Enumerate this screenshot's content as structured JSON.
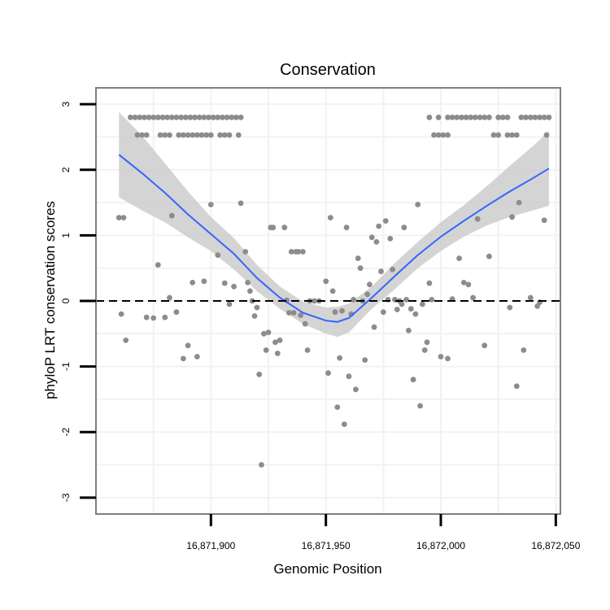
{
  "chart_data": {
    "type": "scatter",
    "title": "Conservation",
    "xlabel": "Genomic Position",
    "ylabel": "phyloP LRT conservation scores",
    "xlim": [
      16871850,
      16872052
    ],
    "ylim": [
      -3.25,
      3.25
    ],
    "x_ticks": [
      16871900,
      16871950,
      16872000,
      16872050
    ],
    "x_tick_labels": [
      "16,871,900",
      "16,871,950",
      "16,872,000",
      "16,872,050"
    ],
    "y_ticks": [
      -3,
      -2,
      -1,
      0,
      1,
      2,
      3
    ],
    "y_tick_labels": [
      "-3",
      "-2",
      "-1",
      "0",
      "1",
      "2",
      "3"
    ],
    "grid": true,
    "reference_line": {
      "y": 0,
      "style": "dashed",
      "color": "#000000"
    },
    "colors": {
      "points": "#8c8c8c",
      "smooth": "#3366ff",
      "ribbon": "#cccccc",
      "panel_border": "#7f7f7f",
      "grid": "#f2f2f2"
    },
    "points": [
      [
        16871865,
        2.8
      ],
      [
        16871867,
        2.8
      ],
      [
        16871869,
        2.8
      ],
      [
        16871871,
        2.8
      ],
      [
        16871873,
        2.8
      ],
      [
        16871875,
        2.8
      ],
      [
        16871877,
        2.8
      ],
      [
        16871879,
        2.8
      ],
      [
        16871881,
        2.8
      ],
      [
        16871883,
        2.8
      ],
      [
        16871885,
        2.8
      ],
      [
        16871887,
        2.8
      ],
      [
        16871889,
        2.8
      ],
      [
        16871891,
        2.8
      ],
      [
        16871893,
        2.8
      ],
      [
        16871895,
        2.8
      ],
      [
        16871897,
        2.8
      ],
      [
        16871899,
        2.8
      ],
      [
        16871901,
        2.8
      ],
      [
        16871903,
        2.8
      ],
      [
        16871905,
        2.8
      ],
      [
        16871907,
        2.8
      ],
      [
        16871909,
        2.8
      ],
      [
        16871911,
        2.8
      ],
      [
        16871913,
        2.8
      ],
      [
        16871868,
        2.53
      ],
      [
        16871870,
        2.53
      ],
      [
        16871872,
        2.53
      ],
      [
        16871878,
        2.53
      ],
      [
        16871880,
        2.53
      ],
      [
        16871882,
        2.53
      ],
      [
        16871886,
        2.53
      ],
      [
        16871888,
        2.53
      ],
      [
        16871890,
        2.53
      ],
      [
        16871892,
        2.53
      ],
      [
        16871894,
        2.53
      ],
      [
        16871896,
        2.53
      ],
      [
        16871898,
        2.53
      ],
      [
        16871900,
        2.53
      ],
      [
        16871904,
        2.53
      ],
      [
        16871906,
        2.53
      ],
      [
        16871908,
        2.53
      ],
      [
        16871912,
        2.53
      ],
      [
        16871995,
        2.8
      ],
      [
        16871999,
        2.8
      ],
      [
        16872003,
        2.8
      ],
      [
        16872005,
        2.8
      ],
      [
        16872007,
        2.8
      ],
      [
        16872009,
        2.8
      ],
      [
        16872011,
        2.8
      ],
      [
        16872013,
        2.8
      ],
      [
        16872015,
        2.8
      ],
      [
        16872017,
        2.8
      ],
      [
        16872019,
        2.8
      ],
      [
        16872021,
        2.8
      ],
      [
        16872025,
        2.8
      ],
      [
        16872027,
        2.8
      ],
      [
        16872029,
        2.8
      ],
      [
        16872035,
        2.8
      ],
      [
        16872037,
        2.8
      ],
      [
        16872039,
        2.8
      ],
      [
        16872041,
        2.8
      ],
      [
        16872043,
        2.8
      ],
      [
        16872045,
        2.8
      ],
      [
        16872047,
        2.8
      ],
      [
        16871997,
        2.53
      ],
      [
        16871999,
        2.53
      ],
      [
        16872001,
        2.53
      ],
      [
        16872003,
        2.53
      ],
      [
        16872023,
        2.53
      ],
      [
        16872025,
        2.53
      ],
      [
        16872029,
        2.53
      ],
      [
        16872031,
        2.53
      ],
      [
        16872033,
        2.53
      ],
      [
        16872046,
        2.53
      ],
      [
        16871860,
        1.27
      ],
      [
        16871862,
        1.27
      ],
      [
        16871861,
        -0.2
      ],
      [
        16871863,
        -0.6
      ],
      [
        16871872,
        -0.25
      ],
      [
        16871875,
        -0.26
      ],
      [
        16871877,
        0.55
      ],
      [
        16871880,
        -0.25
      ],
      [
        16871882,
        0.05
      ],
      [
        16871883,
        1.3
      ],
      [
        16871885,
        -0.17
      ],
      [
        16871888,
        -0.88
      ],
      [
        16871890,
        -0.68
      ],
      [
        16871892,
        0.28
      ],
      [
        16871894,
        -0.85
      ],
      [
        16871897,
        0.3
      ],
      [
        16871900,
        1.47
      ],
      [
        16871903,
        0.7
      ],
      [
        16871906,
        0.27
      ],
      [
        16871908,
        -0.05
      ],
      [
        16871910,
        0.22
      ],
      [
        16871913,
        1.49
      ],
      [
        16871915,
        0.75
      ],
      [
        16871916,
        0.28
      ],
      [
        16871917,
        0.15
      ],
      [
        16871918,
        0
      ],
      [
        16871919,
        -0.23
      ],
      [
        16871920,
        -0.1
      ],
      [
        16871921,
        -1.12
      ],
      [
        16871922,
        -2.5
      ],
      [
        16871923,
        -0.5
      ],
      [
        16871924,
        -0.75
      ],
      [
        16871925,
        -0.48
      ],
      [
        16871926,
        1.12
      ],
      [
        16871927,
        1.12
      ],
      [
        16871928,
        -0.63
      ],
      [
        16871929,
        -0.8
      ],
      [
        16871930,
        -0.6
      ],
      [
        16871932,
        1.12
      ],
      [
        16871933,
        0.01
      ],
      [
        16871934,
        -0.18
      ],
      [
        16871935,
        0.75
      ],
      [
        16871936,
        -0.18
      ],
      [
        16871937,
        0.75
      ],
      [
        16871938,
        0.75
      ],
      [
        16871940,
        0.75
      ],
      [
        16871939,
        -0.22
      ],
      [
        16871941,
        -0.35
      ],
      [
        16871942,
        -0.75
      ],
      [
        16871943,
        0
      ],
      [
        16871945,
        0
      ],
      [
        16871947,
        0
      ],
      [
        16871950,
        0.3
      ],
      [
        16871951,
        -1.1
      ],
      [
        16871952,
        1.27
      ],
      [
        16871953,
        0.15
      ],
      [
        16871954,
        -0.17
      ],
      [
        16871955,
        -1.62
      ],
      [
        16871956,
        -0.87
      ],
      [
        16871957,
        -0.15
      ],
      [
        16871958,
        -1.88
      ],
      [
        16871959,
        1.12
      ],
      [
        16871960,
        -1.15
      ],
      [
        16871961,
        -0.2
      ],
      [
        16871962,
        0.02
      ],
      [
        16871963,
        -1.35
      ],
      [
        16871964,
        0.65
      ],
      [
        16871965,
        0.5
      ],
      [
        16871966,
        0
      ],
      [
        16871967,
        -0.9
      ],
      [
        16871968,
        0.1
      ],
      [
        16871969,
        0.25
      ],
      [
        16871970,
        0.97
      ],
      [
        16871971,
        -0.4
      ],
      [
        16871972,
        0.9
      ],
      [
        16871973,
        1.14
      ],
      [
        16871974,
        0.45
      ],
      [
        16871975,
        -0.17
      ],
      [
        16871976,
        1.22
      ],
      [
        16871977,
        0.02
      ],
      [
        16871978,
        0.95
      ],
      [
        16871979,
        0.48
      ],
      [
        16871980,
        0.02
      ],
      [
        16871981,
        -0.13
      ],
      [
        16871982,
        0
      ],
      [
        16871983,
        -0.05
      ],
      [
        16871984,
        1.12
      ],
      [
        16871985,
        0.02
      ],
      [
        16871986,
        -0.45
      ],
      [
        16871987,
        -0.12
      ],
      [
        16871988,
        -1.2
      ],
      [
        16871989,
        -0.2
      ],
      [
        16871990,
        1.47
      ],
      [
        16871991,
        -1.6
      ],
      [
        16871992,
        -0.05
      ],
      [
        16871993,
        -0.75
      ],
      [
        16871994,
        -0.63
      ],
      [
        16871995,
        0.27
      ],
      [
        16871996,
        0.02
      ],
      [
        16872000,
        -0.85
      ],
      [
        16872003,
        -0.88
      ],
      [
        16872005,
        0.03
      ],
      [
        16872008,
        0.65
      ],
      [
        16872010,
        0.28
      ],
      [
        16872012,
        0.25
      ],
      [
        16872014,
        0.05
      ],
      [
        16872016,
        1.25
      ],
      [
        16872019,
        -0.68
      ],
      [
        16872021,
        0.68
      ],
      [
        16872030,
        -0.1
      ],
      [
        16872031,
        1.28
      ],
      [
        16872033,
        -1.3
      ],
      [
        16872034,
        1.5
      ],
      [
        16872036,
        -0.75
      ],
      [
        16872039,
        0.05
      ],
      [
        16872042,
        -0.08
      ],
      [
        16872043,
        -0.02
      ],
      [
        16872045,
        1.23
      ]
    ],
    "smooth": {
      "method": "loess",
      "x": [
        16871860,
        16871870,
        16871880,
        16871890,
        16871900,
        16871910,
        16871920,
        16871930,
        16871940,
        16871950,
        16871955,
        16871960,
        16871970,
        16871980,
        16871990,
        16872000,
        16872010,
        16872020,
        16872030,
        16872040,
        16872047
      ],
      "y": [
        2.23,
        1.95,
        1.65,
        1.32,
        1.02,
        0.72,
        0.35,
        0.05,
        -0.18,
        -0.3,
        -0.32,
        -0.26,
        0.05,
        0.38,
        0.7,
        0.98,
        1.22,
        1.45,
        1.67,
        1.87,
        2.02
      ],
      "lower": [
        1.58,
        1.38,
        1.2,
        0.97,
        0.76,
        0.48,
        0.15,
        -0.12,
        -0.35,
        -0.5,
        -0.55,
        -0.48,
        -0.12,
        0.18,
        0.5,
        0.76,
        0.98,
        1.15,
        1.28,
        1.38,
        1.45
      ],
      "upper": [
        2.88,
        2.52,
        2.1,
        1.67,
        1.28,
        0.96,
        0.55,
        0.22,
        -0.01,
        -0.1,
        -0.09,
        -0.04,
        0.22,
        0.58,
        0.9,
        1.2,
        1.46,
        1.75,
        2.06,
        2.36,
        2.59
      ]
    }
  }
}
